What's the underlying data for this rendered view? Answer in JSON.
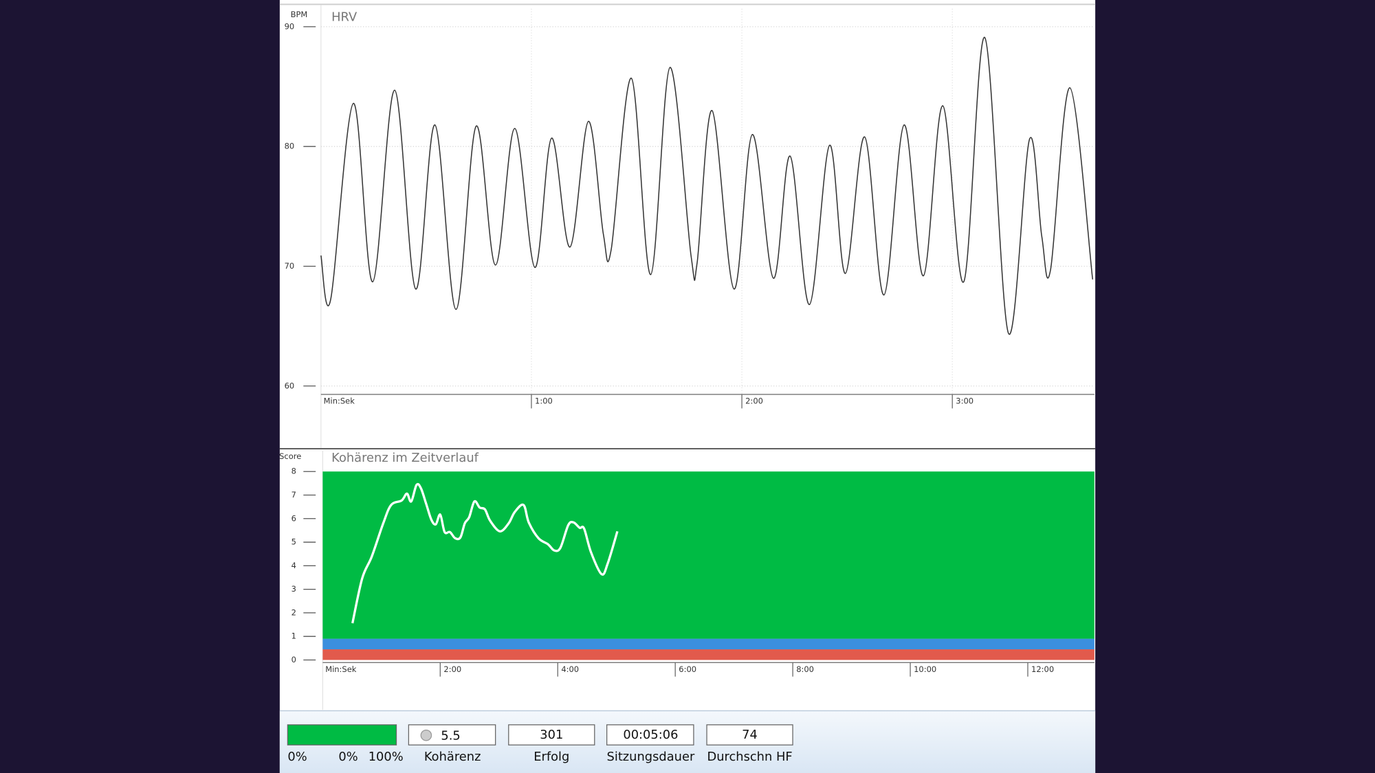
{
  "chart_data": [
    {
      "type": "line",
      "title": "HRV",
      "y_label": "BPM",
      "x_label": "Min:Sek",
      "color": "#333333",
      "grid": true,
      "x": [
        0,
        2.75,
        9.25,
        14.75,
        21,
        27,
        32.5,
        38.5,
        44.25,
        49.75,
        55.25,
        61,
        65.75,
        71,
        76.25,
        80.5,
        82.75,
        88.5,
        94,
        99.5,
        105.5,
        107.25,
        111.5,
        117.75,
        123,
        129,
        133.75,
        139.25,
        145,
        149.5,
        155,
        160.5,
        166.25,
        171.75,
        177.25,
        183.25,
        189.25,
        196,
        202,
        205.5,
        208,
        213.5,
        220
      ],
      "values": [
        70.9,
        67.2,
        83.6,
        68.7,
        84.7,
        68.1,
        81.8,
        66.4,
        81.7,
        70.1,
        81.5,
        69.9,
        80.7,
        71.6,
        82.1,
        72.7,
        71.4,
        85.7,
        69.3,
        86.6,
        70.9,
        70.3,
        83.0,
        68.1,
        81.0,
        69.0,
        79.2,
        66.8,
        80.1,
        69.4,
        80.8,
        67.6,
        81.8,
        69.2,
        83.4,
        68.7,
        89.1,
        64.4,
        80.6,
        72.5,
        69.7,
        84.9,
        68.9
      ],
      "xlim": [
        0,
        220.5
      ],
      "xticks": [
        {
          "value": 60,
          "label": "1:00"
        },
        {
          "value": 120,
          "label": "2:00"
        },
        {
          "value": 180,
          "label": "3:00"
        }
      ],
      "ylim": [
        59.3,
        91.5
      ],
      "yticks": [
        60,
        70,
        80,
        90
      ]
    },
    {
      "type": "line",
      "title": "Kohärenz im Zeitverlauf",
      "y_label": "Score",
      "x_label": "Min:Sek",
      "color": "#ffffff",
      "bands": [
        {
          "from": 0,
          "to": 0.45,
          "color": "#e25a4c"
        },
        {
          "from": 0.45,
          "to": 0.9,
          "color": "#3b8fde"
        },
        {
          "from": 0.9,
          "to": 8,
          "color": "#00bb44"
        }
      ],
      "x": [
        30.4,
        40.3,
        50.1,
        61.8,
        69.9,
        80.6,
        86,
        90.4,
        95.8,
        100.3,
        105.7,
        111,
        115.5,
        120,
        124.5,
        129.9,
        135.2,
        140.6,
        145.1,
        149.6,
        154.9,
        160.3,
        165.7,
        171,
        180.9,
        189.9,
        196.1,
        205.1,
        210.4,
        220.3,
        230.1,
        236.4,
        242.7,
        250.7,
        256.1,
        262.4,
        266.9,
        274,
        284.8,
        291,
        300.9
      ],
      "values": [
        1.56,
        3.46,
        4.39,
        5.8,
        6.58,
        6.77,
        7.06,
        6.73,
        7.43,
        7.29,
        6.62,
        5.95,
        5.76,
        6.17,
        5.43,
        5.43,
        5.17,
        5.2,
        5.8,
        6.06,
        6.73,
        6.47,
        6.39,
        5.91,
        5.46,
        5.8,
        6.28,
        6.58,
        5.84,
        5.17,
        4.91,
        4.65,
        4.76,
        5.72,
        5.84,
        5.61,
        5.58,
        4.57,
        3.64,
        4.09,
        5.46
      ],
      "xlim": [
        0,
        788
      ],
      "xticks": [
        {
          "value": 120,
          "label": "2:00"
        },
        {
          "value": 240,
          "label": "4:00"
        },
        {
          "value": 360,
          "label": "6:00"
        },
        {
          "value": 480,
          "label": "8:00"
        },
        {
          "value": 600,
          "label": "10:00"
        },
        {
          "value": 720,
          "label": "12:00"
        }
      ],
      "ylim": [
        0,
        8
      ],
      "yticks": [
        0,
        1,
        2,
        3,
        4,
        5,
        6,
        7,
        8
      ]
    }
  ],
  "status_bar": {
    "progress_labels": [
      "0%",
      "0%",
      "100%"
    ],
    "fields": [
      {
        "value": 5.5,
        "label": "Kohärenz"
      },
      {
        "value": 301,
        "label": "Erfolg"
      },
      {
        "value": "00:05:06",
        "label": "Sitzungsdauer"
      },
      {
        "value": 74,
        "label": "Durchschn HF"
      }
    ]
  }
}
